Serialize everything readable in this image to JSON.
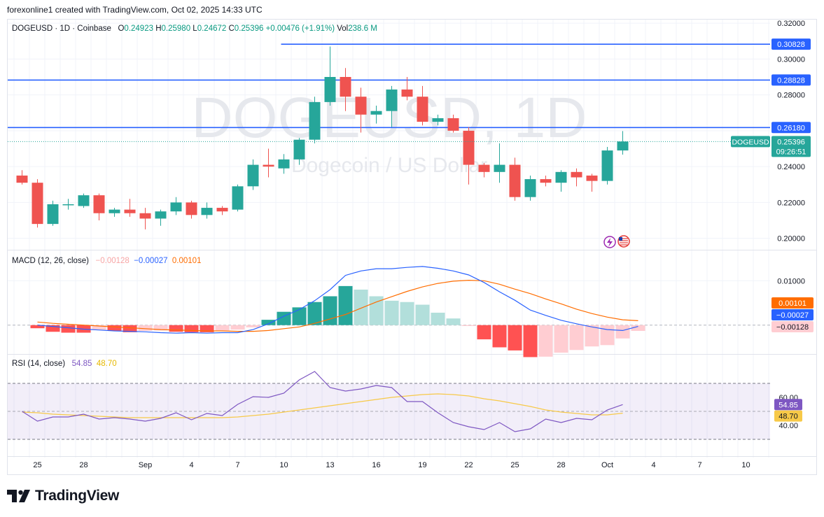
{
  "header": {
    "note": "forexonline1 created with TradingView.com, Oct 02, 2025 14:33 UTC"
  },
  "legend": {
    "symbol": "DOGEUSD · 1D · Coinbase",
    "o_label": "O",
    "o": "0.24923",
    "h_label": "H",
    "h": "0.25980",
    "l_label": "L",
    "l": "0.24672",
    "c_label": "C",
    "c": "0.25396",
    "change": "+0.00476 (+1.91%)",
    "vol_label": "Vol",
    "vol": "238.6 M"
  },
  "macd_legend": {
    "name": "MACD (12, 26, close)",
    "hist": "−0.00128",
    "macd": "−0.00027",
    "signal": "0.00101"
  },
  "rsi_legend": {
    "name": "RSI (14, close)",
    "rsi": "54.85",
    "ma": "48.70"
  },
  "watermark": {
    "title": "DOGEUSD, 1D",
    "subtitle": "Dogecoin / US Dollar"
  },
  "footer": {
    "brand": "TradingView"
  },
  "colors": {
    "up": "#26a69a",
    "down": "#ef5350",
    "line": "#2962ff",
    "macd": "#2962ff",
    "signal": "#ff6d00",
    "rsi": "#7e57c2",
    "rsi_ma": "#f7c948"
  },
  "chart_data": {
    "type": "candlestick",
    "price_axis": {
      "ticks": [
        "0.32000",
        "0.30000",
        "0.28000",
        "0.24000",
        "0.22000",
        "0.20000"
      ],
      "range": [
        0.194,
        0.322
      ]
    },
    "x_tick_labels": [
      "25",
      "28",
      "Sep",
      "4",
      "7",
      "10",
      "13",
      "16",
      "19",
      "22",
      "25",
      "28",
      "Oct",
      "4",
      "7",
      "10"
    ],
    "candles": [
      {
        "date": "Aug 24",
        "o": 0.235,
        "h": 0.238,
        "l": 0.23,
        "c": 0.231
      },
      {
        "date": "Aug 25",
        "o": 0.231,
        "h": 0.233,
        "l": 0.206,
        "c": 0.208
      },
      {
        "date": "Aug 26",
        "o": 0.208,
        "h": 0.221,
        "l": 0.207,
        "c": 0.219
      },
      {
        "date": "Aug 27",
        "o": 0.2185,
        "h": 0.222,
        "l": 0.216,
        "c": 0.219
      },
      {
        "date": "Aug 28",
        "o": 0.218,
        "h": 0.225,
        "l": 0.217,
        "c": 0.224
      },
      {
        "date": "Aug 29",
        "o": 0.224,
        "h": 0.225,
        "l": 0.21,
        "c": 0.214
      },
      {
        "date": "Aug 30",
        "o": 0.214,
        "h": 0.217,
        "l": 0.212,
        "c": 0.216
      },
      {
        "date": "Aug 31",
        "o": 0.216,
        "h": 0.222,
        "l": 0.212,
        "c": 0.214
      },
      {
        "date": "Sep 1",
        "o": 0.214,
        "h": 0.217,
        "l": 0.205,
        "c": 0.211
      },
      {
        "date": "Sep 2",
        "o": 0.211,
        "h": 0.216,
        "l": 0.207,
        "c": 0.215
      },
      {
        "date": "Sep 3",
        "o": 0.215,
        "h": 0.223,
        "l": 0.213,
        "c": 0.22
      },
      {
        "date": "Sep 4",
        "o": 0.22,
        "h": 0.221,
        "l": 0.211,
        "c": 0.213
      },
      {
        "date": "Sep 5",
        "o": 0.213,
        "h": 0.22,
        "l": 0.211,
        "c": 0.217
      },
      {
        "date": "Sep 6",
        "o": 0.217,
        "h": 0.218,
        "l": 0.213,
        "c": 0.215
      },
      {
        "date": "Sep 7",
        "o": 0.216,
        "h": 0.23,
        "l": 0.215,
        "c": 0.229
      },
      {
        "date": "Sep 8",
        "o": 0.229,
        "h": 0.244,
        "l": 0.227,
        "c": 0.241
      },
      {
        "date": "Sep 9",
        "o": 0.241,
        "h": 0.25,
        "l": 0.234,
        "c": 0.24
      },
      {
        "date": "Sep 10",
        "o": 0.239,
        "h": 0.247,
        "l": 0.236,
        "c": 0.244
      },
      {
        "date": "Sep 11",
        "o": 0.244,
        "h": 0.256,
        "l": 0.241,
        "c": 0.255
      },
      {
        "date": "Sep 12",
        "o": 0.255,
        "h": 0.279,
        "l": 0.253,
        "c": 0.276
      },
      {
        "date": "Sep 13",
        "o": 0.276,
        "h": 0.307,
        "l": 0.274,
        "c": 0.29
      },
      {
        "date": "Sep 14",
        "o": 0.29,
        "h": 0.295,
        "l": 0.271,
        "c": 0.279
      },
      {
        "date": "Sep 15",
        "o": 0.279,
        "h": 0.284,
        "l": 0.259,
        "c": 0.269
      },
      {
        "date": "Sep 16",
        "o": 0.269,
        "h": 0.274,
        "l": 0.264,
        "c": 0.271
      },
      {
        "date": "Sep 17",
        "o": 0.271,
        "h": 0.285,
        "l": 0.262,
        "c": 0.283
      },
      {
        "date": "Sep 18",
        "o": 0.283,
        "h": 0.29,
        "l": 0.277,
        "c": 0.279
      },
      {
        "date": "Sep 19",
        "o": 0.279,
        "h": 0.285,
        "l": 0.263,
        "c": 0.265
      },
      {
        "date": "Sep 20",
        "o": 0.265,
        "h": 0.269,
        "l": 0.263,
        "c": 0.267
      },
      {
        "date": "Sep 21",
        "o": 0.267,
        "h": 0.269,
        "l": 0.259,
        "c": 0.26
      },
      {
        "date": "Sep 22",
        "o": 0.26,
        "h": 0.262,
        "l": 0.23,
        "c": 0.241
      },
      {
        "date": "Sep 23",
        "o": 0.241,
        "h": 0.242,
        "l": 0.234,
        "c": 0.237
      },
      {
        "date": "Sep 24",
        "o": 0.237,
        "h": 0.253,
        "l": 0.231,
        "c": 0.241
      },
      {
        "date": "Sep 25",
        "o": 0.241,
        "h": 0.245,
        "l": 0.221,
        "c": 0.223
      },
      {
        "date": "Sep 26",
        "o": 0.223,
        "h": 0.235,
        "l": 0.221,
        "c": 0.233
      },
      {
        "date": "Sep 27",
        "o": 0.233,
        "h": 0.235,
        "l": 0.229,
        "c": 0.231
      },
      {
        "date": "Sep 28",
        "o": 0.231,
        "h": 0.238,
        "l": 0.226,
        "c": 0.237
      },
      {
        "date": "Sep 29",
        "o": 0.237,
        "h": 0.239,
        "l": 0.229,
        "c": 0.234
      },
      {
        "date": "Sep 30",
        "o": 0.235,
        "h": 0.236,
        "l": 0.226,
        "c": 0.232
      },
      {
        "date": "Oct 1",
        "o": 0.232,
        "h": 0.251,
        "l": 0.23,
        "c": 0.249
      },
      {
        "date": "Oct 2",
        "o": 0.249,
        "h": 0.2598,
        "l": 0.2467,
        "c": 0.254
      }
    ],
    "horizontal_levels": [
      {
        "value": 0.30828,
        "label": "0.30828",
        "from": "Sep 10"
      },
      {
        "value": 0.28828,
        "label": "0.28828",
        "from": "start"
      },
      {
        "value": 0.2618,
        "label": "0.26180",
        "from": "start"
      }
    ],
    "last_price": {
      "symbol": "DOGEUSD",
      "value": "0.25396",
      "countdown": "09:26:51"
    },
    "macd": {
      "axis_ticks": [
        "0.01000"
      ],
      "range": [
        -0.0065,
        0.0165
      ],
      "histogram": [
        -0.0007,
        -0.0015,
        -0.0017,
        -0.0017,
        -0.0011,
        -0.0013,
        -0.0016,
        -0.0013,
        -0.0012,
        -0.0015,
        -0.0016,
        -0.0016,
        -0.0012,
        -0.001,
        -0.0005,
        0.0012,
        0.003,
        0.004,
        0.0052,
        0.0065,
        0.0088,
        0.008,
        0.0065,
        0.0055,
        0.0052,
        0.0046,
        0.0028,
        0.0015,
        -0.0002,
        -0.0032,
        -0.005,
        -0.0057,
        -0.0072,
        -0.0071,
        -0.0062,
        -0.0056,
        -0.0048,
        -0.0045,
        -0.003,
        -0.0013
      ],
      "macd_line": [
        0.0,
        -0.0003,
        -0.0006,
        -0.0009,
        -0.0011,
        -0.0013,
        -0.0014,
        -0.0015,
        -0.0017,
        -0.0018,
        -0.0017,
        -0.0018,
        -0.0017,
        -0.0017,
        -0.001,
        0.0003,
        0.002,
        0.0035,
        0.0055,
        0.008,
        0.0112,
        0.0122,
        0.0127,
        0.0127,
        0.013,
        0.0132,
        0.0128,
        0.0122,
        0.0113,
        0.0096,
        0.0075,
        0.0056,
        0.0034,
        0.0022,
        0.0011,
        0.0003,
        -0.0004,
        -0.001,
        -0.0012,
        -0.0003
      ],
      "signal_line": [
        0.0007,
        0.0004,
        0.0002,
        0.0,
        -0.0002,
        -0.0004,
        -0.0006,
        -0.0008,
        -0.001,
        -0.0011,
        -0.0012,
        -0.0013,
        -0.0013,
        -0.0014,
        -0.0014,
        -0.0012,
        -0.0008,
        -0.0004,
        0.0004,
        0.0014,
        0.0024,
        0.0038,
        0.0052,
        0.0064,
        0.0076,
        0.0086,
        0.0094,
        0.0099,
        0.0101,
        0.01,
        0.0092,
        0.0081,
        0.0071,
        0.0059,
        0.0048,
        0.0036,
        0.0026,
        0.0018,
        0.0012,
        0.001
      ]
    },
    "rsi": {
      "axis_ticks": [
        "60.00",
        "40.00"
      ],
      "range": [
        20,
        90
      ],
      "band": [
        30,
        70
      ],
      "rsi_line": [
        50.0,
        43.0,
        46.0,
        46.0,
        48.0,
        44.5,
        45.5,
        44.5,
        43.0,
        45.0,
        49.0,
        44.0,
        48.5,
        47.0,
        55.0,
        60.5,
        60.0,
        63.0,
        72.5,
        78.5,
        67.0,
        64.5,
        66.0,
        68.5,
        67.0,
        57.0,
        57.0,
        49.0,
        42.0,
        39.0,
        37.0,
        42.0,
        35.5,
        37.5,
        44.5,
        42.0,
        45.0,
        44.0,
        51.0,
        54.85
      ],
      "rsi_ma": [
        49.5,
        49.0,
        48.0,
        47.5,
        47.0,
        46.5,
        46.0,
        45.5,
        45.5,
        45.5,
        45.5,
        45.5,
        45.5,
        45.5,
        46.0,
        47.0,
        48.0,
        49.5,
        51.0,
        52.5,
        54.0,
        55.5,
        57.0,
        58.5,
        60.0,
        61.0,
        62.0,
        62.5,
        62.0,
        61.0,
        59.0,
        57.5,
        55.5,
        53.5,
        51.0,
        49.5,
        48.5,
        47.5,
        47.5,
        48.7
      ]
    }
  }
}
